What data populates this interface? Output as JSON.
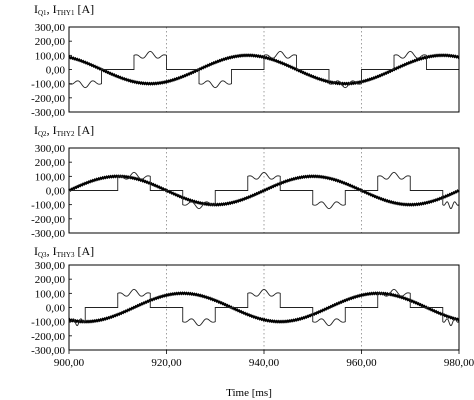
{
  "chart_data": [
    {
      "type": "line",
      "title": "I_Q1, I_THY1 [A]",
      "ylabel_main": "I",
      "ylabel_sub1": "Q1",
      "ylabel_sep": ", I",
      "ylabel_sub2": "THY1",
      "ylabel_unit": " [A]",
      "xlim": [
        900,
        980
      ],
      "ylim": [
        -300,
        300
      ],
      "y_ticks": [
        "300,00",
        "200,00",
        "100,00",
        "0,00",
        "-100,00",
        "-200,00",
        "-300,00"
      ],
      "grid": true,
      "sine_phase_deg": 300,
      "step_levels": [
        -100,
        0,
        100,
        0,
        -100,
        0,
        100,
        0,
        -100,
        0,
        100,
        0,
        -100
      ],
      "step_edges": [
        900,
        906.67,
        913.33,
        920,
        926.67,
        933.33,
        940,
        946.67,
        953.33,
        960,
        966.67,
        973.33,
        980
      ],
      "series": [
        {
          "name": "",
          "kind": "sine",
          "amplitude": 100,
          "period_ms": 40
        },
        {
          "name": "",
          "kind": "six-step",
          "amplitude": 100,
          "period_ms": 40
        }
      ]
    },
    {
      "type": "line",
      "title": "I_Q2, I_THY2 [A]",
      "ylabel_main": "I",
      "ylabel_sub1": "Q2",
      "ylabel_sep": ", I",
      "ylabel_sub2": "THY2",
      "ylabel_unit": " [A]",
      "xlim": [
        900,
        980
      ],
      "ylim": [
        -300,
        300
      ],
      "y_ticks": [
        "300,00",
        "200,00",
        "100,00",
        "0,00",
        "-100,00",
        "-200,00",
        "-300,00"
      ],
      "grid": true,
      "sine_phase_deg": 180,
      "step_levels": [
        0,
        100,
        0,
        -100,
        0,
        100,
        0,
        -100,
        0,
        100,
        0,
        -100,
        0
      ],
      "step_edges": [
        900,
        910,
        916.67,
        923.33,
        930,
        936.67,
        943.33,
        950,
        956.67,
        963.33,
        970,
        976.67,
        980
      ],
      "series": [
        {
          "name": "",
          "kind": "sine",
          "amplitude": 100,
          "period_ms": 40
        },
        {
          "name": "",
          "kind": "six-step",
          "amplitude": 100,
          "period_ms": 40
        }
      ]
    },
    {
      "type": "line",
      "title": "I_Q3, I_THY3 [A]",
      "ylabel_main": "I",
      "ylabel_sub1": "Q3",
      "ylabel_sep": ", I",
      "ylabel_sub2": "THY3",
      "ylabel_unit": " [A]",
      "xlim": [
        900,
        980
      ],
      "ylim": [
        -300,
        300
      ],
      "y_ticks": [
        "300,00",
        "200,00",
        "100,00",
        "0,00",
        "-100,00",
        "-200,00",
        "-300,00"
      ],
      "grid": true,
      "sine_phase_deg": 60,
      "step_levels": [
        -100,
        0,
        100,
        0,
        -100,
        0,
        100,
        0,
        -100,
        0,
        100,
        0,
        -100
      ],
      "step_edges": [
        900,
        903.33,
        910,
        916.67,
        923.33,
        930,
        936.67,
        943.33,
        950,
        956.67,
        963.33,
        970,
        976.67
      ],
      "x_ticks": [
        "900,00",
        "920,00",
        "940,00",
        "960,00",
        "980,00"
      ],
      "xlabel": "Time [ms]",
      "series": [
        {
          "name": "",
          "kind": "sine",
          "amplitude": 100,
          "period_ms": 40
        },
        {
          "name": "",
          "kind": "six-step",
          "amplitude": 100,
          "period_ms": 40
        }
      ]
    }
  ],
  "colors": {
    "axes": "#000000",
    "grid": "#999999",
    "trace_thick": "#000000",
    "trace_thin": "#222222"
  }
}
